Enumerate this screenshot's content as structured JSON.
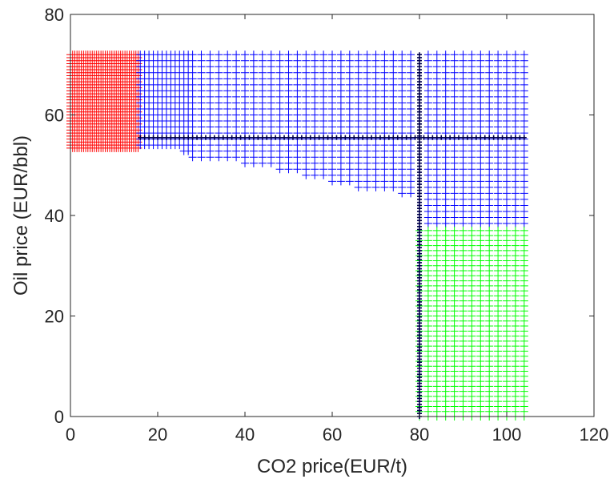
{
  "chart_data": {
    "type": "scatter",
    "title": "",
    "xlabel": "CO2 price(EUR/t)",
    "ylabel": "Oil price (EUR/bbl)",
    "xlim": [
      0,
      120
    ],
    "ylim": [
      0,
      80
    ],
    "xticks": [
      0,
      20,
      40,
      60,
      80,
      100,
      120
    ],
    "yticks": [
      0,
      20,
      40,
      60,
      80
    ],
    "grid": false,
    "marker": "+",
    "colors": {
      "red": "#ff0000",
      "blue": "#0000ff",
      "green": "#00ff00",
      "dark": "#00004d"
    },
    "regions": [
      {
        "color": "red",
        "description_for_plot": "dense + markers",
        "x_values": [
          0,
          0.5,
          1,
          1.5,
          2,
          2.5,
          3,
          3.5,
          4,
          4.5,
          5,
          5.5,
          6,
          6.5,
          7,
          7.5,
          8,
          8.5,
          9,
          9.5,
          10,
          10.5,
          11,
          11.5,
          12,
          12.5,
          13,
          13.5,
          14,
          14.5,
          15,
          15.5
        ],
        "y_min": 53,
        "y_max": 72,
        "y_step": 0.6
      },
      {
        "color": "blue",
        "x_values": [
          16,
          17,
          18,
          19,
          20,
          21,
          22,
          23,
          24,
          25,
          26,
          27,
          28,
          30,
          32,
          34,
          36,
          38,
          40,
          42,
          44,
          46,
          48,
          50,
          52,
          54,
          56,
          58,
          60,
          62,
          64,
          66,
          68,
          70,
          72,
          74,
          76,
          78,
          82,
          84,
          86,
          88,
          90,
          92,
          94,
          96,
          98,
          100,
          102,
          104
        ],
        "y_max": 72,
        "y_step": 1.2,
        "y_floor": [
          [
            16,
            53.5
          ],
          [
            22,
            53
          ],
          [
            26,
            52.5
          ],
          [
            28,
            51.5
          ],
          [
            32,
            50.5
          ],
          [
            40,
            49.5
          ],
          [
            48,
            48.5
          ],
          [
            54,
            47.5
          ],
          [
            60,
            46.5
          ],
          [
            66,
            45.5
          ],
          [
            72,
            44.5
          ],
          [
            76,
            43.5
          ],
          [
            80,
            37.5
          ],
          [
            104,
            37.5
          ]
        ]
      },
      {
        "color": "green",
        "x_values": [
          80,
          82,
          84,
          86,
          88,
          90,
          92,
          94,
          96,
          98,
          100,
          102,
          104
        ],
        "y_min": 0,
        "y_max": 37,
        "y_step": 1.0
      }
    ],
    "dark_lines": [
      {
        "orientation": "horizontal",
        "y": 55.5,
        "x_min": 16,
        "x_max": 104,
        "step": 1
      },
      {
        "orientation": "vertical",
        "x": 80,
        "y_min": 0,
        "y_max": 72,
        "step": 0.6
      }
    ]
  }
}
